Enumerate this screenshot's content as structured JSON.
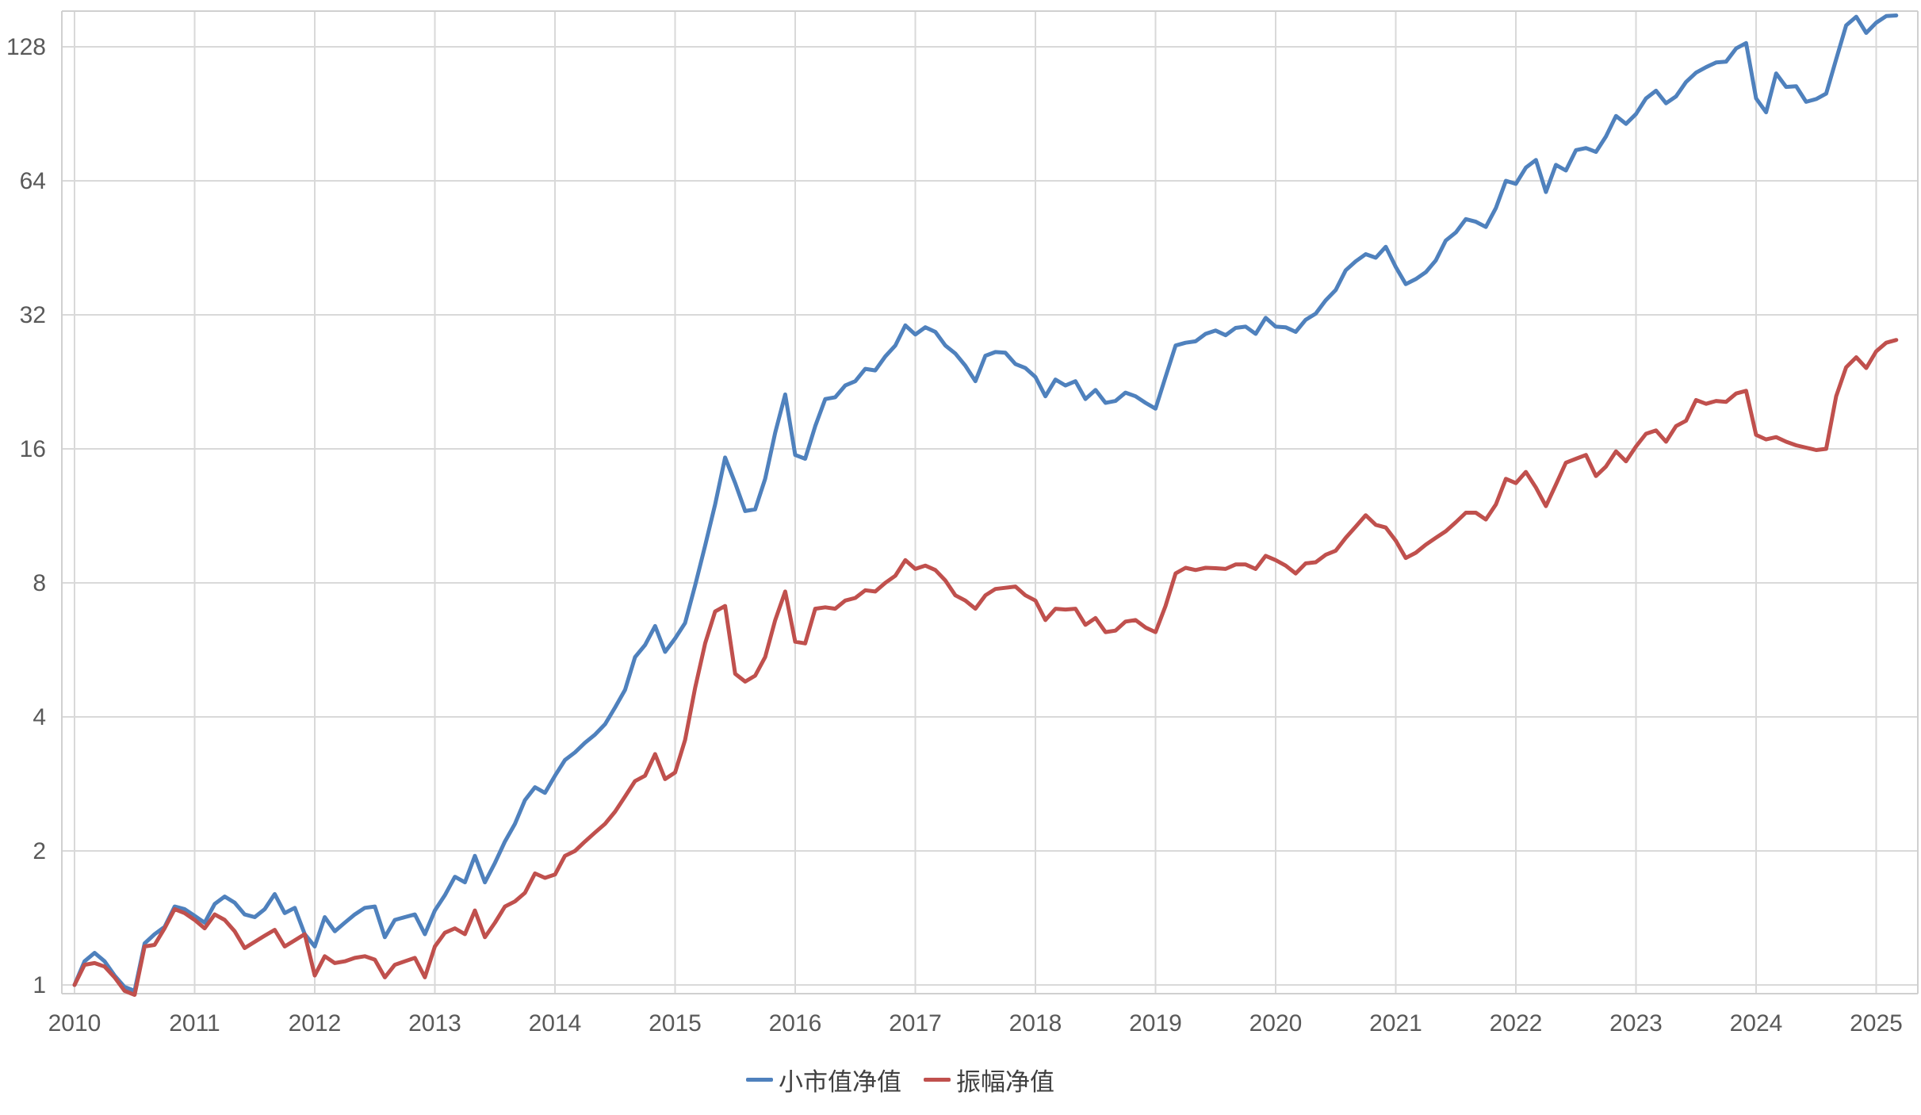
{
  "chart_data": {
    "type": "line",
    "title": "",
    "xlabel": "",
    "ylabel": "",
    "grid": true,
    "legend_position": "bottom-center",
    "x_axis": {
      "tick_labels": [
        "2010",
        "2011",
        "2012",
        "2013",
        "2014",
        "2015",
        "2016",
        "2017",
        "2018",
        "2019",
        "2020",
        "2021",
        "2022",
        "2023",
        "2024",
        "2025"
      ],
      "start_month": "2010-01",
      "end_month": "2025-03",
      "freq": "monthly"
    },
    "y_axis": {
      "scale": "log2",
      "tick_values": [
        1,
        2,
        4,
        8,
        16,
        32,
        64,
        128
      ],
      "tick_labels": [
        "1",
        "2",
        "4",
        "8",
        "16",
        "32",
        "64",
        "128"
      ],
      "min": 0.95,
      "max": 158
    },
    "series": [
      {
        "name": "小市值净值",
        "color": "#4F81BD",
        "values": [
          1.0,
          1.13,
          1.18,
          1.13,
          1.05,
          0.99,
          0.97,
          1.24,
          1.3,
          1.35,
          1.5,
          1.48,
          1.43,
          1.38,
          1.52,
          1.58,
          1.53,
          1.44,
          1.42,
          1.48,
          1.6,
          1.45,
          1.49,
          1.3,
          1.22,
          1.42,
          1.32,
          1.38,
          1.44,
          1.49,
          1.5,
          1.28,
          1.4,
          1.42,
          1.44,
          1.3,
          1.47,
          1.59,
          1.75,
          1.7,
          1.95,
          1.7,
          1.88,
          2.1,
          2.3,
          2.6,
          2.78,
          2.7,
          2.95,
          3.2,
          3.33,
          3.5,
          3.65,
          3.85,
          4.2,
          4.6,
          5.45,
          5.8,
          6.4,
          5.6,
          6.0,
          6.5,
          7.9,
          9.7,
          12.0,
          15.3,
          13.4,
          11.6,
          11.7,
          13.7,
          17.4,
          21.2,
          15.5,
          15.2,
          18.0,
          20.7,
          20.9,
          22.2,
          22.7,
          24.2,
          24.0,
          25.8,
          27.3,
          30.3,
          28.9,
          30.0,
          29.3,
          27.3,
          26.2,
          24.6,
          22.7,
          25.9,
          26.4,
          26.3,
          24.8,
          24.3,
          23.2,
          21.0,
          22.9,
          22.2,
          22.7,
          20.7,
          21.7,
          20.3,
          20.5,
          21.4,
          21.0,
          20.3,
          19.7,
          23.2,
          27.3,
          27.7,
          27.9,
          29.0,
          29.5,
          28.8,
          29.9,
          30.1,
          29.0,
          31.5,
          30.1,
          30.0,
          29.3,
          31.2,
          32.2,
          34.5,
          36.4,
          40.3,
          42.2,
          43.8,
          43.0,
          45.5,
          41.0,
          37.5,
          38.5,
          39.9,
          42.4,
          47.0,
          49.0,
          52.5,
          51.8,
          50.4,
          55.6,
          64.0,
          63.0,
          68.5,
          71.3,
          60.4,
          69.5,
          67.5,
          75.0,
          75.8,
          74.3,
          80.5,
          89.5,
          85.9,
          90.4,
          98.0,
          102.0,
          95.6,
          99.0,
          106.7,
          112.0,
          115.2,
          118.0,
          118.5,
          126.9,
          130.5,
          98.0,
          91.2,
          111.5,
          104.0,
          104.4,
          96.3,
          97.7,
          100.5,
          120.0,
          143.0,
          149.5,
          137.5,
          145.0,
          150.0,
          150.5
        ]
      },
      {
        "name": "振幅净值",
        "color": "#C0504D",
        "values": [
          1.0,
          1.11,
          1.12,
          1.1,
          1.04,
          0.97,
          0.95,
          1.22,
          1.23,
          1.34,
          1.48,
          1.45,
          1.4,
          1.34,
          1.44,
          1.4,
          1.32,
          1.21,
          1.25,
          1.29,
          1.33,
          1.22,
          1.26,
          1.3,
          1.05,
          1.16,
          1.12,
          1.13,
          1.15,
          1.16,
          1.14,
          1.04,
          1.11,
          1.13,
          1.15,
          1.04,
          1.22,
          1.31,
          1.34,
          1.3,
          1.47,
          1.28,
          1.38,
          1.5,
          1.54,
          1.61,
          1.78,
          1.74,
          1.77,
          1.95,
          2.0,
          2.1,
          2.2,
          2.3,
          2.45,
          2.65,
          2.87,
          2.95,
          3.3,
          2.9,
          3.0,
          3.55,
          4.65,
          5.85,
          6.9,
          7.1,
          5.0,
          4.8,
          4.95,
          5.45,
          6.6,
          7.65,
          5.9,
          5.85,
          7.0,
          7.05,
          7.0,
          7.3,
          7.4,
          7.7,
          7.65,
          8.0,
          8.3,
          9.0,
          8.6,
          8.75,
          8.55,
          8.1,
          7.5,
          7.3,
          7.0,
          7.5,
          7.75,
          7.8,
          7.85,
          7.5,
          7.3,
          6.6,
          7.0,
          6.97,
          7.0,
          6.44,
          6.67,
          6.2,
          6.25,
          6.55,
          6.6,
          6.35,
          6.2,
          7.1,
          8.4,
          8.65,
          8.55,
          8.65,
          8.63,
          8.6,
          8.8,
          8.8,
          8.6,
          9.2,
          9.0,
          8.75,
          8.4,
          8.85,
          8.9,
          9.25,
          9.45,
          10.1,
          10.7,
          11.35,
          10.8,
          10.65,
          9.95,
          9.1,
          9.35,
          9.75,
          10.1,
          10.45,
          10.95,
          11.5,
          11.5,
          11.1,
          12.0,
          13.7,
          13.4,
          14.2,
          13.1,
          11.9,
          13.3,
          14.9,
          15.2,
          15.5,
          13.9,
          14.6,
          15.8,
          15.0,
          16.2,
          17.3,
          17.6,
          16.6,
          18.0,
          18.5,
          20.6,
          20.2,
          20.5,
          20.4,
          21.3,
          21.6,
          17.2,
          16.8,
          17.0,
          16.6,
          16.3,
          16.1,
          15.9,
          16.0,
          21.0,
          24.4,
          25.7,
          24.3,
          26.5,
          27.7,
          28.1
        ]
      }
    ]
  },
  "colors": {
    "background": "#FFFFFF",
    "gridline": "#D9D9D9",
    "plot_border": "#D0D0D0",
    "tick_text": "#595959",
    "legend_text": "#404040"
  }
}
